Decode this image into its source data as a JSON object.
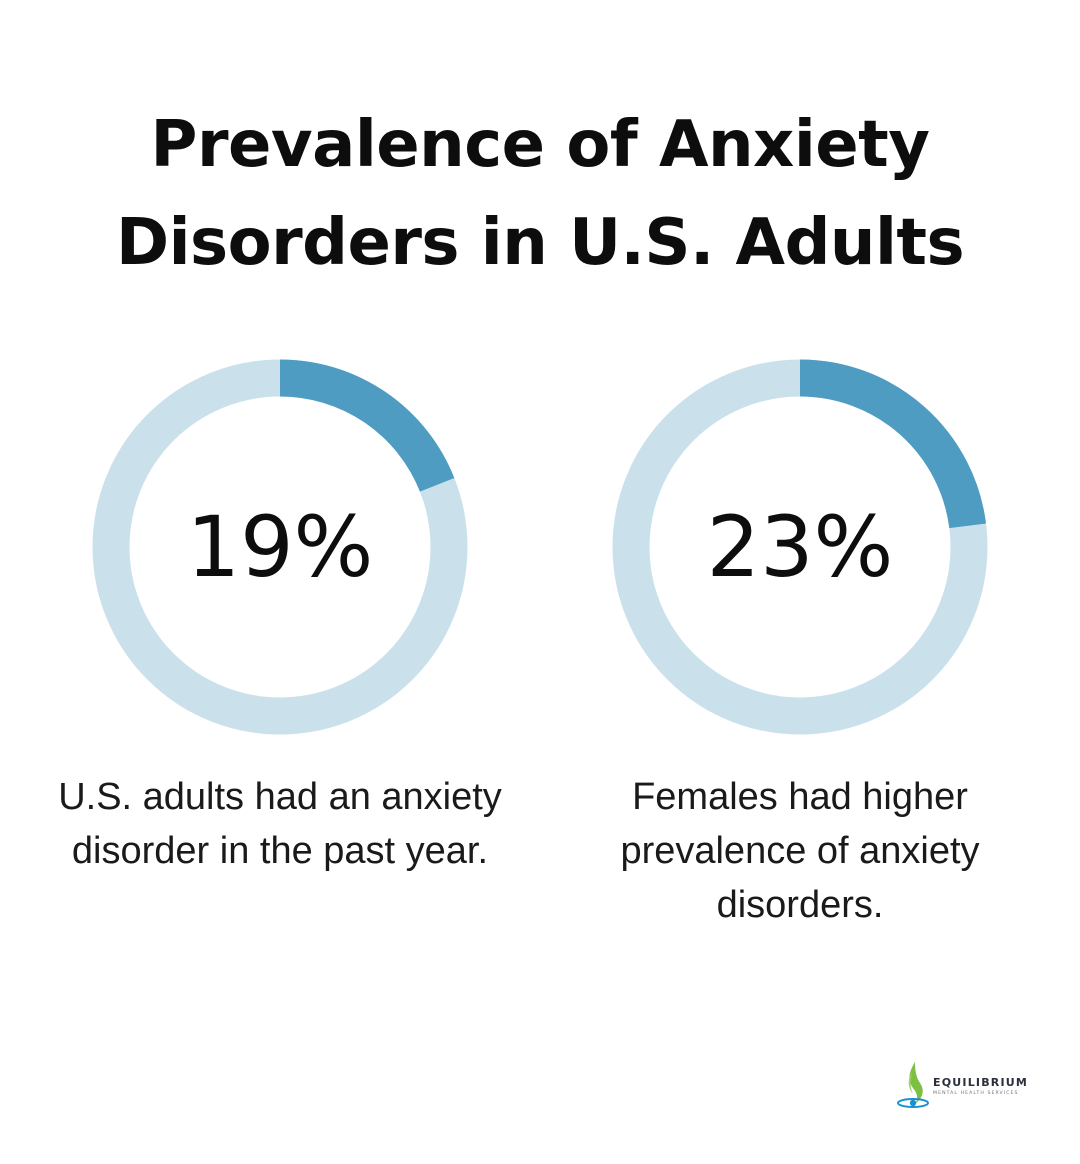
{
  "title": {
    "line1": "Prevalence of Anxiety",
    "line2": "Disorders in U.S. Adults"
  },
  "chart_data": [
    {
      "type": "pie",
      "variant": "donut",
      "value": 19,
      "value_label": "19%",
      "caption": "U.S. adults had an anxiety disorder in the past year.",
      "colors": {
        "filled": "#4f9cc3",
        "track": "#cae1ec"
      }
    },
    {
      "type": "pie",
      "variant": "donut",
      "value": 23,
      "value_label": "23%",
      "caption": "Females had higher prevalence of anxiety disorders.",
      "colors": {
        "filled": "#4f9cc3",
        "track": "#cae1ec"
      }
    }
  ],
  "logo": {
    "name": "EQUILIBRIUM",
    "tagline": "MENTAL HEALTH SERVICES",
    "icon": "flame-drop-icon",
    "colors": {
      "green": "#7cc043",
      "blue": "#1b8fcf"
    }
  }
}
